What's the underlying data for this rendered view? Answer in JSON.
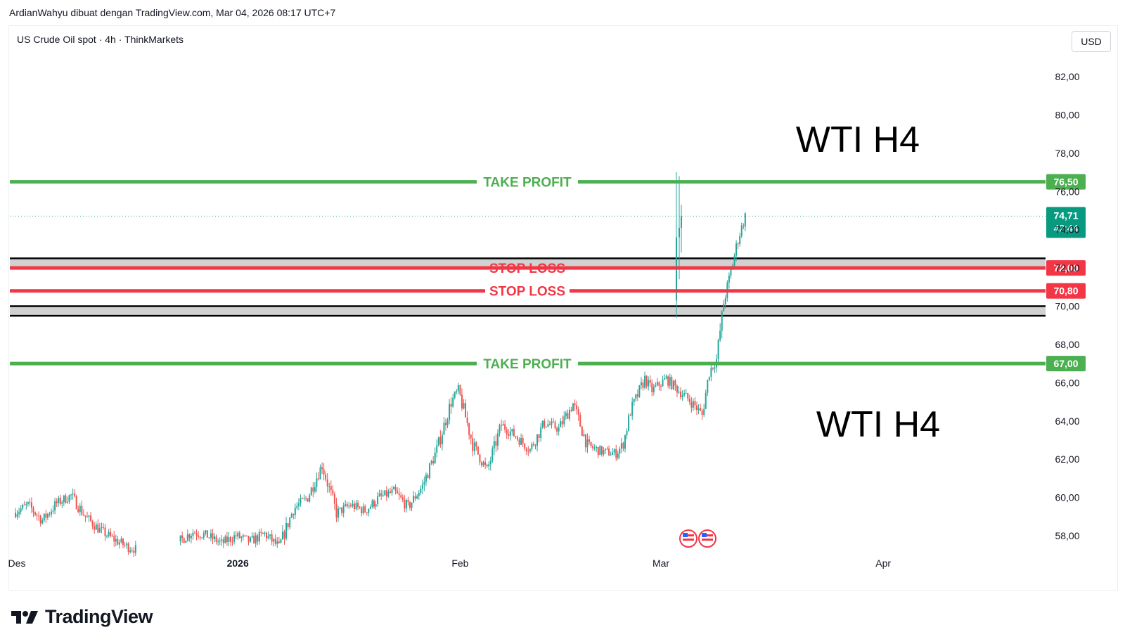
{
  "header": {
    "text": "ArdianWahyu dibuat dengan TradingView.com, Mar 04, 2026 08:17 UTC+7"
  },
  "symbol": {
    "text": "US Crude Oil spot · 4h · ThinkMarkets"
  },
  "currency": {
    "label": "USD"
  },
  "footer": {
    "brand": "TradingView",
    "logo_icon": "tradingview-logo-icon"
  },
  "colors": {
    "up": "#26a69a",
    "down": "#ef5350",
    "take_profit": "#4caf50",
    "stop_loss": "#f23645",
    "zone": "#d1d1d1"
  },
  "chart_data": {
    "type": "candlestick",
    "ylim": [
      56.5,
      83.5
    ],
    "y_ticks": [
      58,
      60,
      62,
      64,
      66,
      68,
      70,
      72,
      74,
      76,
      78,
      80,
      82
    ],
    "y_tick_labels": [
      "58,00",
      "60,00",
      "62,00",
      "64,00",
      "66,00",
      "68,00",
      "70,00",
      "72,00",
      "74,00",
      "76,00",
      "78,00",
      "80,00",
      "82,00"
    ],
    "x_labels": [
      {
        "label": "Des",
        "date": "2025-12-01"
      },
      {
        "label": "2026",
        "date": "2026-01-01"
      },
      {
        "label": "Feb",
        "date": "2026-02-01"
      },
      {
        "label": "Mar",
        "date": "2026-03-01"
      },
      {
        "label": "Apr",
        "date": "2026-04-01"
      }
    ],
    "annotations": [
      {
        "text": "WTI H4",
        "position": "upper-right"
      },
      {
        "text": "WTI H4",
        "position": "lower-right"
      }
    ],
    "levels": [
      {
        "label": "TAKE PROFIT",
        "value": 76.5,
        "value_label": "76,50",
        "kind": "take-profit"
      },
      {
        "label": "STOP LOSS",
        "value": 72.0,
        "value_label": "72,00",
        "kind": "stop-loss",
        "strikethrough": true
      },
      {
        "label": "STOP LOSS",
        "value": 70.8,
        "value_label": "70,80",
        "kind": "stop-loss"
      },
      {
        "label": "TAKE PROFIT",
        "value": 67.0,
        "value_label": "67,00",
        "kind": "take-profit"
      }
    ],
    "zones": [
      {
        "from": 72.0,
        "to": 72.5
      },
      {
        "from": 69.5,
        "to": 70.0
      }
    ],
    "last_price": {
      "value": 74.71,
      "label": "74,71",
      "countdown": "42:44"
    },
    "series_path": [
      [
        "2025-12-01",
        59.2
      ],
      [
        "2025-12-03",
        59.6
      ],
      [
        "2025-12-05",
        58.8
      ],
      [
        "2025-12-07",
        59.7
      ],
      [
        "2025-12-09",
        60.1
      ],
      [
        "2025-12-11",
        59.0
      ],
      [
        "2025-12-13",
        58.3
      ],
      [
        "2025-12-15",
        57.8
      ],
      [
        "2025-12-17",
        57.4
      ],
      [
        "2025-12-18",
        57.3
      ],
      [
        "2025-12-24",
        57.7
      ],
      [
        "2025-12-26",
        58.2
      ],
      [
        "2025-12-28",
        58.0
      ],
      [
        "2025-12-30",
        57.6
      ],
      [
        "2026-01-01",
        58.0
      ],
      [
        "2026-01-03",
        57.7
      ],
      [
        "2026-01-05",
        58.1
      ],
      [
        "2026-01-07",
        57.4
      ],
      [
        "2026-01-09",
        59.4
      ],
      [
        "2026-01-11",
        60.0
      ],
      [
        "2026-01-13",
        61.7
      ],
      [
        "2026-01-15",
        59.2
      ],
      [
        "2026-01-17",
        59.6
      ],
      [
        "2026-01-19",
        59.3
      ],
      [
        "2026-01-21",
        60.0
      ],
      [
        "2026-01-23",
        60.3
      ],
      [
        "2026-01-25",
        59.5
      ],
      [
        "2026-01-27",
        60.6
      ],
      [
        "2026-01-29",
        62.5
      ],
      [
        "2026-01-31",
        65.0
      ],
      [
        "2026-02-01",
        65.6
      ],
      [
        "2026-02-03",
        62.8
      ],
      [
        "2026-02-05",
        61.4
      ],
      [
        "2026-02-07",
        63.8
      ],
      [
        "2026-02-09",
        63.2
      ],
      [
        "2026-02-11",
        62.5
      ],
      [
        "2026-02-13",
        63.9
      ],
      [
        "2026-02-15",
        63.6
      ],
      [
        "2026-02-17",
        64.9
      ],
      [
        "2026-02-19",
        62.7
      ],
      [
        "2026-02-21",
        62.4
      ],
      [
        "2026-02-23",
        62.3
      ],
      [
        "2026-02-24",
        62.8
      ],
      [
        "2026-02-25",
        64.5
      ],
      [
        "2026-02-27",
        66.2
      ],
      [
        "2026-02-28",
        65.6
      ],
      [
        "2026-03-02",
        66.2
      ],
      [
        "2026-03-04",
        65.5
      ],
      [
        "2026-03-06",
        64.8
      ],
      [
        "2026-03-07",
        64.3
      ],
      [
        "2026-03-08",
        66.6
      ],
      [
        "2026-03-09",
        67.2
      ],
      [
        "2026-03-10",
        70.2
      ],
      [
        "2026-03-11",
        71.8
      ],
      [
        "2026-03-12",
        73.5
      ],
      [
        "2026-03-13",
        74.71
      ]
    ],
    "series_note": "approximate OHLC path for US Crude Oil spot 4h"
  }
}
